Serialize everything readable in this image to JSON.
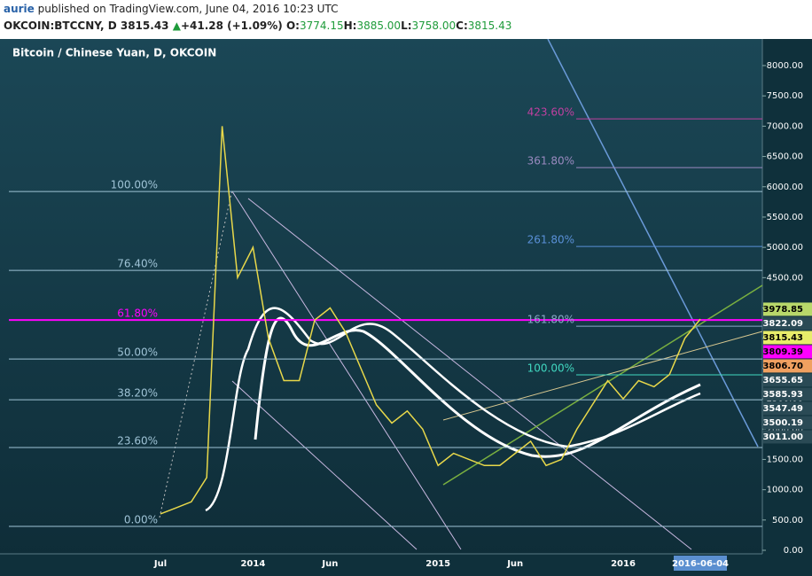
{
  "header": {
    "user": "aurie",
    "published": "published on TradingView.com, June 04, 2016 10:23 UTC",
    "symbol": "OKCOIN:BTCCNY, D",
    "price": "3815.43",
    "change": "+41.28 (+1.09%)",
    "ohlc": [
      {
        "label": "O:",
        "value": "3774.15"
      },
      {
        "label": "H:",
        "value": "3885.00"
      },
      {
        "label": "L:",
        "value": "3758.00"
      },
      {
        "label": "C:",
        "value": "3815.43"
      }
    ]
  },
  "chart_data": {
    "type": "line",
    "title": "Bitcoin / Chinese Yuan, D, OKCOIN",
    "categories": [
      "Jul",
      null,
      null,
      null,
      null,
      null,
      "2014",
      null,
      null,
      null,
      null,
      "Jun",
      null,
      null,
      null,
      null,
      null,
      null,
      "2015",
      null,
      null,
      null,
      null,
      "Jun",
      null,
      null,
      null,
      null,
      null,
      null,
      "2016",
      null,
      null,
      null,
      null,
      "2016-06-04"
    ],
    "values": [
      600,
      700,
      800,
      1200,
      7000,
      4500,
      5000,
      3500,
      2800,
      2800,
      3800,
      4000,
      3600,
      3000,
      2400,
      2100,
      2300,
      2000,
      1400,
      1600,
      1500,
      1400,
      1400,
      1600,
      1800,
      1400,
      1500,
      2000,
      2400,
      2800,
      2500,
      2800,
      2700,
      2900,
      3500,
      3815.43
    ],
    "color": "#e8d84a",
    "ylim": [
      0,
      8000
    ],
    "yticks": [
      {
        "value": 0,
        "label": "0.00"
      },
      {
        "value": 500,
        "label": "500.00"
      },
      {
        "value": 1000,
        "label": "1000.00"
      },
      {
        "value": 1500,
        "label": "1500.00"
      },
      {
        "value": 2000,
        "label": "2000.00"
      },
      {
        "value": 2500,
        "label": "2500.00"
      },
      {
        "value": 3000,
        "label": "3000.00"
      },
      {
        "value": 3500,
        "label": "3500.00"
      },
      {
        "value": 4000,
        "label": "4000.00"
      },
      {
        "value": 4500,
        "label": "4500.00"
      },
      {
        "value": 5000,
        "label": "5000.00"
      },
      {
        "value": 5500,
        "label": "5500.00"
      },
      {
        "value": 6000,
        "label": "6000.00"
      },
      {
        "value": 6500,
        "label": "6500.00"
      },
      {
        "value": 7000,
        "label": "7000.00"
      },
      {
        "value": 7500,
        "label": "7500.00"
      },
      {
        "value": 8000,
        "label": "8000.00"
      }
    ],
    "price_labels": [
      {
        "value": 3978.85,
        "label": "3978.85",
        "color": "#b8d86a"
      },
      {
        "value": 3822.09,
        "label": "3822.09",
        "color": "#2a4a55"
      },
      {
        "value": 3815.43,
        "label": "3815.43",
        "color": "#e8ec6a"
      },
      {
        "value": 3809.39,
        "label": "3809.39",
        "color": "#ff00ff"
      },
      {
        "value": 3806.7,
        "label": "3806.70",
        "color": "#f0a060"
      },
      {
        "value": 3655.65,
        "label": "3655.65",
        "color": "#2a4a55"
      },
      {
        "value": 3585.93,
        "label": "3585.93",
        "color": "#2a4a55"
      },
      {
        "value": 3547.49,
        "label": "3547.49",
        "color": "#2a4a55"
      },
      {
        "value": 3500.19,
        "label": "3500.19",
        "color": "#2a4a55"
      },
      {
        "value": 3011,
        "label": "3011.00",
        "color": "#2a4a55"
      }
    ],
    "fib_left": [
      {
        "label": "100.00%",
        "value": 5921,
        "color": "#9fc3d6"
      },
      {
        "label": "76.40%",
        "value": 4620,
        "color": "#9fc3d6"
      },
      {
        "label": "61.80%",
        "value": 3801,
        "color": "#ff00ff"
      },
      {
        "label": "50.00%",
        "value": 3158,
        "color": "#9fc3d6"
      },
      {
        "label": "38.20%",
        "value": 2485,
        "color": "#9fc3d6"
      },
      {
        "label": "23.60%",
        "value": 1696,
        "color": "#9fc3d6"
      },
      {
        "label": "0.00%",
        "value": 395,
        "color": "#9fc3d6"
      }
    ],
    "fib_right": [
      {
        "label": "423.60%",
        "value": 7120,
        "color": "#c040a0"
      },
      {
        "label": "361.80%",
        "value": 6316,
        "color": "#9a8ac0"
      },
      {
        "label": "261.80%",
        "value": 5015,
        "color": "#5a90d8"
      },
      {
        "label": "161.80%",
        "value": 3699,
        "color": "#8aa8c8"
      },
      {
        "label": "100.00%",
        "value": 2895,
        "color": "#40d8c0"
      }
    ]
  }
}
